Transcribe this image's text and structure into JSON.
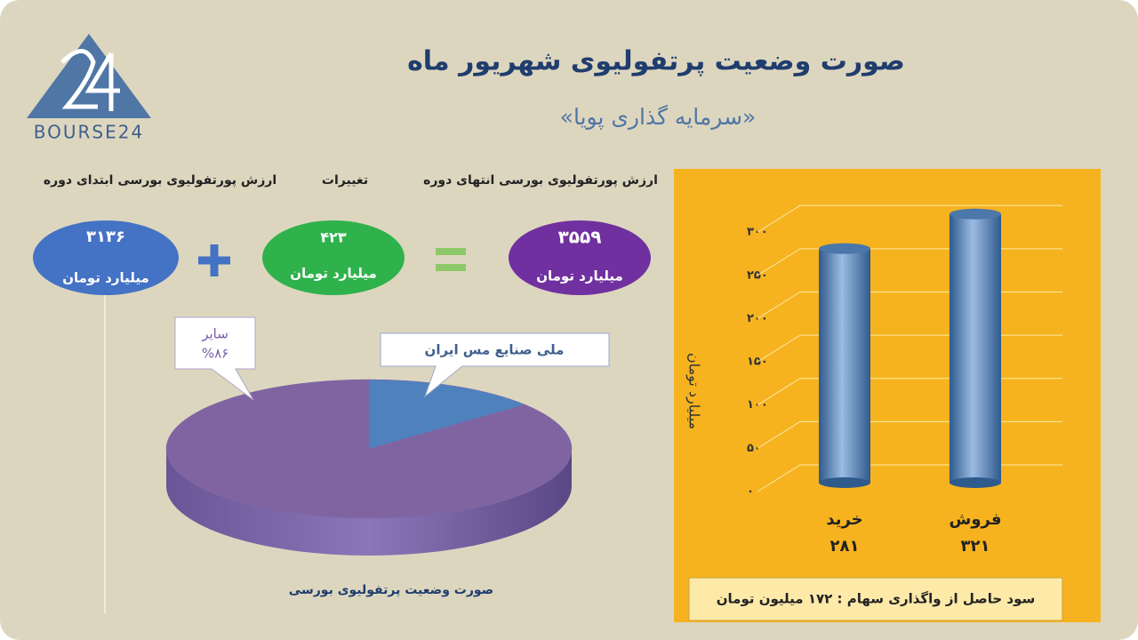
{
  "header": {
    "title": "صورت وضعیت پرتفولیوی شهریور ماه",
    "subtitle": "«سرمایه گذاری پویا»",
    "logo": "BOURSE24"
  },
  "summary": [
    {
      "label": "ارزش پورتفولیوی بورسی ابتدای دوره",
      "amount": "۳۱۳۶",
      "unit": "میلیارد تومان"
    },
    {
      "label": "تغییرات",
      "amount": "۴۲۳",
      "unit": "میلیارد تومان"
    },
    {
      "label": "ارزش پورتفولیوی بورسی انتهای دوره",
      "amount": "۳۵۵۹",
      "unit": "میلیارد تومان"
    }
  ],
  "chart_data": [
    {
      "type": "pie",
      "title": "صورت وضعیت پرتفولیوی بورسی",
      "categories": [
        "ملی صنایع مس ایران",
        "سایر"
      ],
      "values": [
        14,
        86
      ],
      "value_labels": [
        null,
        "%۸۶"
      ],
      "colors": [
        "#4f81bd",
        "#8064a2"
      ]
    },
    {
      "type": "bar",
      "categories": [
        "خرید",
        "فروش"
      ],
      "values": [
        281,
        321
      ],
      "value_labels": [
        "۲۸۱",
        "۳۲۱"
      ],
      "ylabel": "میلیارد تومان",
      "ylim": [
        0,
        330
      ],
      "yticks": [
        {
          "value": 0,
          "label": "۰"
        },
        {
          "value": 50,
          "label": "۵۰"
        },
        {
          "value": 100,
          "label": "۱۰۰"
        },
        {
          "value": 150,
          "label": "۱۵۰"
        },
        {
          "value": 200,
          "label": "۲۰۰"
        },
        {
          "value": 250,
          "label": "۲۵۰"
        },
        {
          "value": 300,
          "label": "۳۰۰"
        }
      ],
      "color": "#4f81bd",
      "grid": true,
      "note": "سود حاصل از واگذاری سهام : ۱۷۲ میلیون تومان"
    }
  ]
}
